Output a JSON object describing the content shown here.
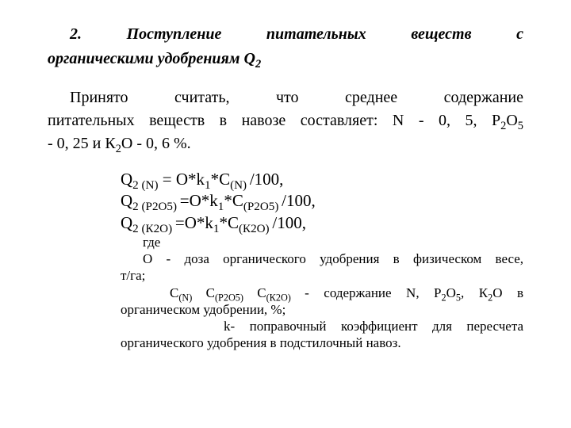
{
  "title_line1": "2.   Поступление    питательных     веществ     с",
  "title_line2": "органическими удобрениям Q",
  "title_sub": "2",
  "paragraph": {
    "l1": "Принято    считать,    что    среднее    содержание",
    "l2_a": "питательных веществ в навозе составляет: N - 0, 5, Р",
    "l2_b": "2",
    "l2_c": "О",
    "l2_d": "5",
    "l3_a": " - 0, 25 и К",
    "l3_b": "2",
    "l3_c": "О - 0, 6 %."
  },
  "formulas": {
    "f1": {
      "lhs_a": "Q",
      "lhs_b": "2 (N)",
      "mid": "    = О*k",
      "k_sub": "1",
      "c": "*С",
      "c_sub": "(N) ",
      "tail": "/100,"
    },
    "f2": {
      "lhs_a": "Q",
      "lhs_b": "2 (Р2О5) ",
      "mid": "=О*k",
      "k_sub": "1",
      "c": "*С",
      "c_sub": "(Р2О5) ",
      "tail": "/100,"
    },
    "f3": {
      "lhs_a": "Q",
      "lhs_b": "2 (К2О) ",
      "mid": " =О*k",
      "k_sub": "1",
      "c": "*С",
      "c_sub": "(К2О) ",
      "tail": "/100,"
    }
  },
  "notes": {
    "n1": "где",
    "n2": "О  -  доза  органического  удобрения  в  физическом  весе,",
    "n2b": "т/га;",
    "n3_a": "С",
    "n3_b": "(N) ",
    "n3_c": "С",
    "n3_d": "(Р2О5)  ",
    "n3_e": "С",
    "n3_f": "(К2О)  ",
    "n3_g": " -  содержание  N,  Р",
    "n3_h": "2",
    "n3_i": "О",
    "n3_j": "5",
    "n3_k": ",  К",
    "n3_l": "2",
    "n3_m": "О    в",
    "n3b": "органическом удобрении, %;",
    "n4": "k-   поправочный   коэффициент   для   пересчета",
    "n4b": "органического удобрения в подстилочный навоз."
  }
}
